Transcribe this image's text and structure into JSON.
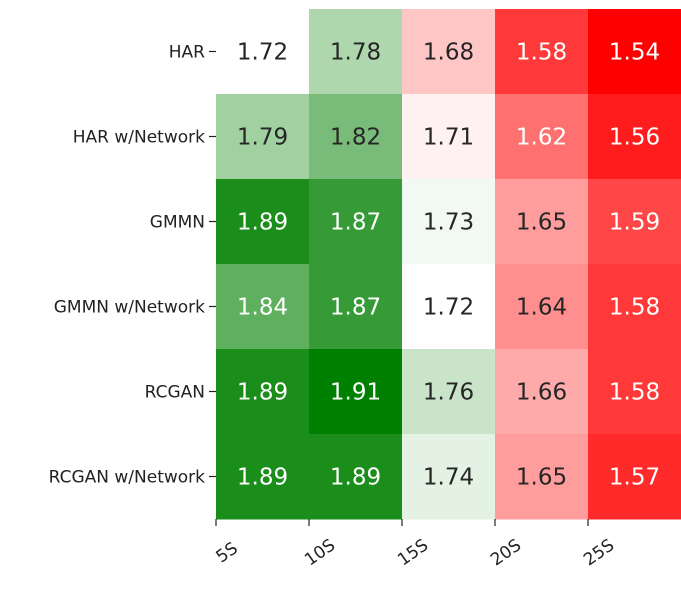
{
  "chart_data": {
    "type": "heatmap",
    "title": "",
    "xlabel": "",
    "ylabel": "",
    "rows": [
      "HAR",
      "HAR w/Network",
      "GMMN",
      "GMMN w/Network",
      "RCGAN",
      "RCGAN w/Network"
    ],
    "columns": [
      "5S",
      "10S",
      "15S",
      "20S",
      "25S"
    ],
    "values": [
      [
        1.72,
        1.78,
        1.68,
        1.58,
        1.54
      ],
      [
        1.79,
        1.82,
        1.71,
        1.62,
        1.56
      ],
      [
        1.89,
        1.87,
        1.73,
        1.65,
        1.59
      ],
      [
        1.84,
        1.87,
        1.72,
        1.64,
        1.58
      ],
      [
        1.89,
        1.91,
        1.76,
        1.66,
        1.58
      ],
      [
        1.89,
        1.89,
        1.74,
        1.65,
        1.57
      ]
    ],
    "colormap": {
      "low": "#ff0000",
      "mid": "#ffffff",
      "high": "#008000",
      "mid_value": 1.72,
      "vmin": 1.54,
      "vmax": 1.91
    },
    "text_colors": {
      "light": "#ffffff",
      "dark": "#262626"
    },
    "grid": false
  }
}
